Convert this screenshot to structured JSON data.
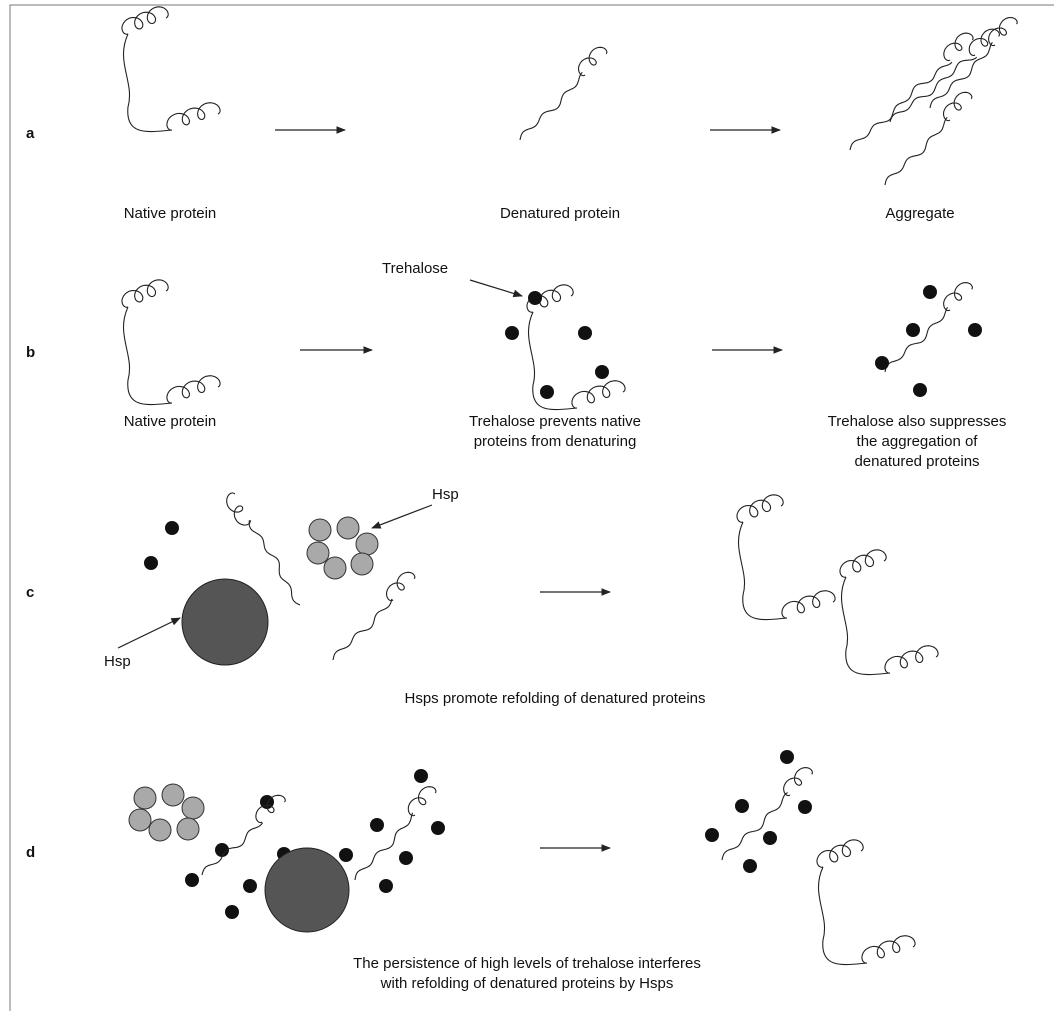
{
  "panels": [
    {
      "label": "a",
      "captions": [
        [
          "Native protein"
        ],
        [
          "Denatured protein"
        ],
        [
          "Aggregate"
        ]
      ]
    },
    {
      "label": "b",
      "callouts": [
        "Trehalose"
      ],
      "captions": [
        [
          "Native protein"
        ],
        [
          "Trehalose prevents native",
          "proteins from denaturing"
        ],
        [
          "Trehalose also suppresses",
          "the aggregation of",
          "denatured proteins"
        ]
      ]
    },
    {
      "label": "c",
      "callouts": [
        "Hsp",
        "Hsp"
      ],
      "captions": [
        [
          "Hsps promote refolding of denatured proteins"
        ]
      ]
    },
    {
      "label": "d",
      "captions": [
        [
          "The persistence of high levels of trehalose interferes",
          "with refolding of denatured proteins by Hsps"
        ]
      ]
    }
  ]
}
